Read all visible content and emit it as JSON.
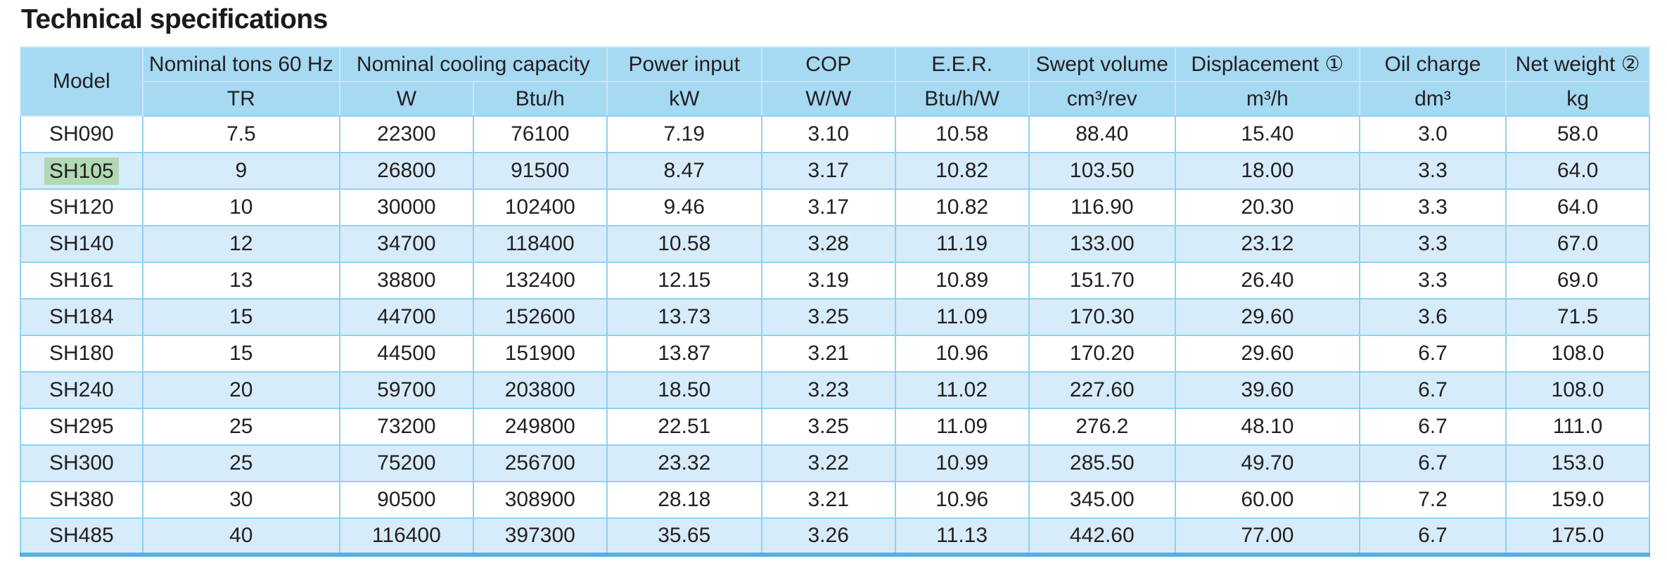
{
  "page": {
    "title": "Technical specifications"
  },
  "colors": {
    "header_bg": "#a6d9f2",
    "stripe_bg": "#d7ecfa",
    "grid_line": "#8ed1f3",
    "bottom_border": "#55b1e1",
    "model_highlight": "#b2d8b4",
    "text": "#231f20"
  },
  "table": {
    "header": {
      "model_label": "Model",
      "groups": [
        {
          "label": "Nominal tons 60 Hz",
          "colspan": 1
        },
        {
          "label": "Nominal cooling capacity",
          "colspan": 2
        },
        {
          "label": "Power input",
          "colspan": 1
        },
        {
          "label": "COP",
          "colspan": 1
        },
        {
          "label": "E.E.R.",
          "colspan": 1
        },
        {
          "label": "Swept volume",
          "colspan": 1
        },
        {
          "label": "Displacement ①",
          "colspan": 1
        },
        {
          "label": "Oil charge",
          "colspan": 1
        },
        {
          "label": "Net weight ②",
          "colspan": 1
        }
      ],
      "units": [
        "TR",
        "W",
        "Btu/h",
        "kW",
        "W/W",
        "Btu/h/W",
        "cm³/rev",
        "m³/h",
        "dm³",
        "kg"
      ]
    },
    "highlighted_model": "SH105",
    "rows": [
      {
        "cells": [
          "SH090",
          "7.5",
          "22300",
          "76100",
          "7.19",
          "3.10",
          "10.58",
          "88.40",
          "15.40",
          "3.0",
          "58.0"
        ]
      },
      {
        "cells": [
          "SH105",
          "9",
          "26800",
          "91500",
          "8.47",
          "3.17",
          "10.82",
          "103.50",
          "18.00",
          "3.3",
          "64.0"
        ]
      },
      {
        "cells": [
          "SH120",
          "10",
          "30000",
          "102400",
          "9.46",
          "3.17",
          "10.82",
          "116.90",
          "20.30",
          "3.3",
          "64.0"
        ]
      },
      {
        "cells": [
          "SH140",
          "12",
          "34700",
          "118400",
          "10.58",
          "3.28",
          "11.19",
          "133.00",
          "23.12",
          "3.3",
          "67.0"
        ]
      },
      {
        "cells": [
          "SH161",
          "13",
          "38800",
          "132400",
          "12.15",
          "3.19",
          "10.89",
          "151.70",
          "26.40",
          "3.3",
          "69.0"
        ]
      },
      {
        "cells": [
          "SH184",
          "15",
          "44700",
          "152600",
          "13.73",
          "3.25",
          "11.09",
          "170.30",
          "29.60",
          "3.6",
          "71.5"
        ]
      },
      {
        "cells": [
          "SH180",
          "15",
          "44500",
          "151900",
          "13.87",
          "3.21",
          "10.96",
          "170.20",
          "29.60",
          "6.7",
          "108.0"
        ]
      },
      {
        "cells": [
          "SH240",
          "20",
          "59700",
          "203800",
          "18.50",
          "3.23",
          "11.02",
          "227.60",
          "39.60",
          "6.7",
          "108.0"
        ]
      },
      {
        "cells": [
          "SH295",
          "25",
          "73200",
          "249800",
          "22.51",
          "3.25",
          "11.09",
          "276.2",
          "48.10",
          "6.7",
          "111.0"
        ]
      },
      {
        "cells": [
          "SH300",
          "25",
          "75200",
          "256700",
          "23.32",
          "3.22",
          "10.99",
          "285.50",
          "49.70",
          "6.7",
          "153.0"
        ]
      },
      {
        "cells": [
          "SH380",
          "30",
          "90500",
          "308900",
          "28.18",
          "3.21",
          "10.96",
          "345.00",
          "60.00",
          "7.2",
          "159.0"
        ]
      },
      {
        "cells": [
          "SH485",
          "40",
          "116400",
          "397300",
          "35.65",
          "3.26",
          "11.13",
          "442.60",
          "77.00",
          "6.7",
          "175.0"
        ]
      }
    ]
  }
}
